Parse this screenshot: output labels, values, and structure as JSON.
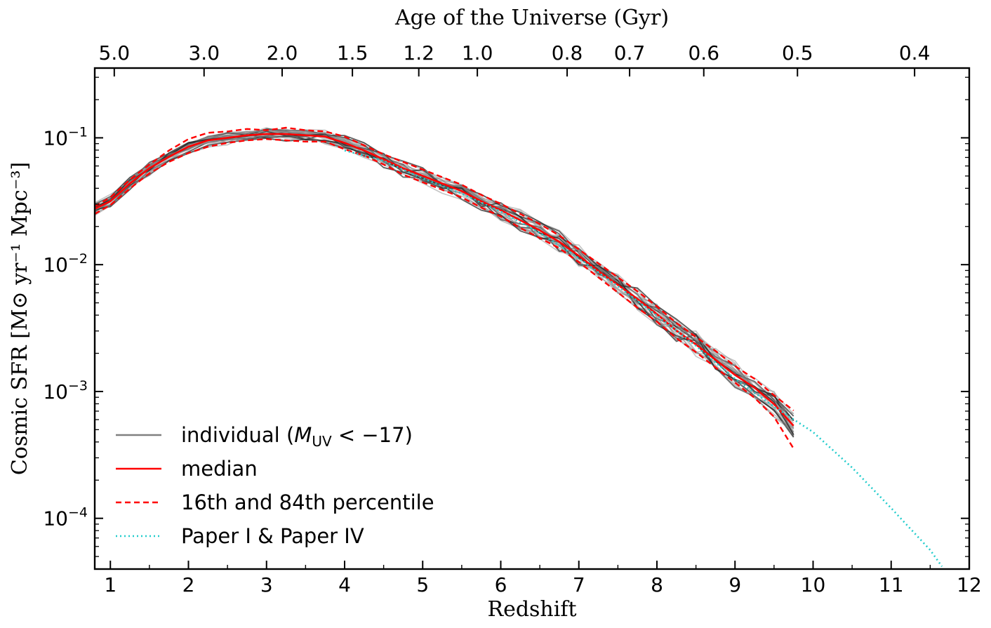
{
  "chart_data": {
    "type": "line",
    "xlabel": "Redshift",
    "ylabel": "Cosmic SFR [M⊙ yr⁻¹ Mpc⁻³]",
    "top_xlabel": "Age of the Universe (Gyr)",
    "xlim": [
      0.8,
      12
    ],
    "ylim_log10": [
      -4.4,
      -0.45
    ],
    "x_ticks": [
      1,
      2,
      3,
      4,
      5,
      6,
      7,
      8,
      9,
      10,
      11,
      12
    ],
    "x_tick_labels": [
      "1",
      "2",
      "3",
      "4",
      "5",
      "6",
      "7",
      "8",
      "9",
      "10",
      "11",
      "12"
    ],
    "y_ticks_log10": [
      -4,
      -3,
      -2,
      -1
    ],
    "y_tick_labels": [
      {
        "base": "10",
        "exp": "−4"
      },
      {
        "base": "10",
        "exp": "−3"
      },
      {
        "base": "10",
        "exp": "−2"
      },
      {
        "base": "10",
        "exp": "−1"
      }
    ],
    "top_ticks": [
      {
        "label": "5.0",
        "z": 1.05
      },
      {
        "label": "3.0",
        "z": 2.2
      },
      {
        "label": "2.0",
        "z": 3.2
      },
      {
        "label": "1.5",
        "z": 4.1
      },
      {
        "label": "1.2",
        "z": 4.95
      },
      {
        "label": "1.0",
        "z": 5.7
      },
      {
        "label": "0.8",
        "z": 6.85
      },
      {
        "label": "0.7",
        "z": 7.65
      },
      {
        "label": "0.6",
        "z": 8.6
      },
      {
        "label": "0.5",
        "z": 9.8
      },
      {
        "label": "0.4",
        "z": 11.3
      }
    ],
    "colors": {
      "individual": "#8a8a8a",
      "median": "#ff0000",
      "percentile": "#ff0000",
      "paper": "#22cccc",
      "dark_individual": "#2a2a2a"
    },
    "legend": {
      "position": "lower-left",
      "entries": [
        {
          "key": "individual",
          "label_pre": "individual (",
          "label_math": "M",
          "label_sub": "UV",
          "label_post": " < −17)",
          "style": "solid-gray"
        },
        {
          "key": "median",
          "label": "median",
          "style": "solid-red"
        },
        {
          "key": "percentile",
          "label": "16th and 84th percentile",
          "style": "dashed-red"
        },
        {
          "key": "paper",
          "label": "Paper I & Paper IV",
          "style": "dotted-cyan"
        }
      ]
    },
    "series": [
      {
        "name": "median",
        "x": [
          0.8,
          1.0,
          1.25,
          1.5,
          1.75,
          2.0,
          2.25,
          2.5,
          2.75,
          3.0,
          3.25,
          3.5,
          3.75,
          4.0,
          4.25,
          4.5,
          4.75,
          5.0,
          5.25,
          5.5,
          5.75,
          6.0,
          6.25,
          6.5,
          6.75,
          7.0,
          7.25,
          7.5,
          7.75,
          8.0,
          8.25,
          8.5,
          8.75,
          9.0,
          9.25,
          9.5,
          9.75
        ],
        "log10_y": [
          -1.56,
          -1.5,
          -1.36,
          -1.24,
          -1.15,
          -1.07,
          -1.02,
          -1.0,
          -0.98,
          -0.97,
          -0.97,
          -0.98,
          -0.99,
          -1.04,
          -1.1,
          -1.17,
          -1.24,
          -1.3,
          -1.36,
          -1.42,
          -1.5,
          -1.57,
          -1.65,
          -1.73,
          -1.82,
          -1.93,
          -2.05,
          -2.16,
          -2.27,
          -2.39,
          -2.52,
          -2.63,
          -2.75,
          -2.87,
          -2.97,
          -3.1,
          -3.27
        ]
      },
      {
        "name": "84th percentile",
        "x": [
          0.8,
          1.0,
          1.25,
          1.5,
          1.75,
          2.0,
          2.25,
          2.5,
          2.75,
          3.0,
          3.25,
          3.5,
          3.75,
          4.0,
          4.25,
          4.5,
          4.75,
          5.0,
          5.25,
          5.5,
          5.75,
          6.0,
          6.25,
          6.5,
          6.75,
          7.0,
          7.25,
          7.5,
          7.75,
          8.0,
          8.25,
          8.5,
          8.75,
          9.0,
          9.25,
          9.5,
          9.75
        ],
        "log10_y": [
          -1.54,
          -1.47,
          -1.33,
          -1.21,
          -1.1,
          -1.01,
          -0.96,
          -0.95,
          -0.93,
          -0.94,
          -0.92,
          -0.94,
          -0.95,
          -0.99,
          -1.06,
          -1.13,
          -1.19,
          -1.25,
          -1.31,
          -1.37,
          -1.45,
          -1.52,
          -1.6,
          -1.68,
          -1.77,
          -1.88,
          -1.99,
          -2.1,
          -2.21,
          -2.33,
          -2.46,
          -2.57,
          -2.68,
          -2.8,
          -2.9,
          -3.03,
          -3.15
        ]
      },
      {
        "name": "16th percentile",
        "x": [
          0.8,
          1.0,
          1.25,
          1.5,
          1.75,
          2.0,
          2.25,
          2.5,
          2.75,
          3.0,
          3.25,
          3.5,
          3.75,
          4.0,
          4.25,
          4.5,
          4.75,
          5.0,
          5.25,
          5.5,
          5.75,
          6.0,
          6.25,
          6.5,
          6.75,
          7.0,
          7.25,
          7.5,
          7.75,
          8.0,
          8.25,
          8.5,
          8.75,
          9.0,
          9.25,
          9.5,
          9.75
        ],
        "log10_y": [
          -1.6,
          -1.53,
          -1.4,
          -1.28,
          -1.19,
          -1.12,
          -1.07,
          -1.04,
          -1.02,
          -1.01,
          -1.02,
          -1.03,
          -1.03,
          -1.09,
          -1.14,
          -1.21,
          -1.29,
          -1.35,
          -1.41,
          -1.47,
          -1.55,
          -1.62,
          -1.71,
          -1.79,
          -1.87,
          -1.98,
          -2.1,
          -2.22,
          -2.34,
          -2.45,
          -2.58,
          -2.69,
          -2.81,
          -2.93,
          -3.05,
          -3.2,
          -3.45
        ]
      },
      {
        "name": "Paper I & Paper IV",
        "x": [
          4.0,
          4.5,
          5.0,
          5.5,
          6.0,
          6.5,
          7.0,
          7.5,
          8.0,
          8.5,
          9.0,
          9.5,
          10.0,
          10.5,
          11.0,
          11.5,
          11.65
        ],
        "log10_y": [
          -1.1,
          -1.18,
          -1.32,
          -1.44,
          -1.58,
          -1.75,
          -1.95,
          -2.17,
          -2.4,
          -2.64,
          -2.9,
          -3.12,
          -3.32,
          -3.6,
          -3.92,
          -4.25,
          -4.38
        ]
      }
    ]
  }
}
